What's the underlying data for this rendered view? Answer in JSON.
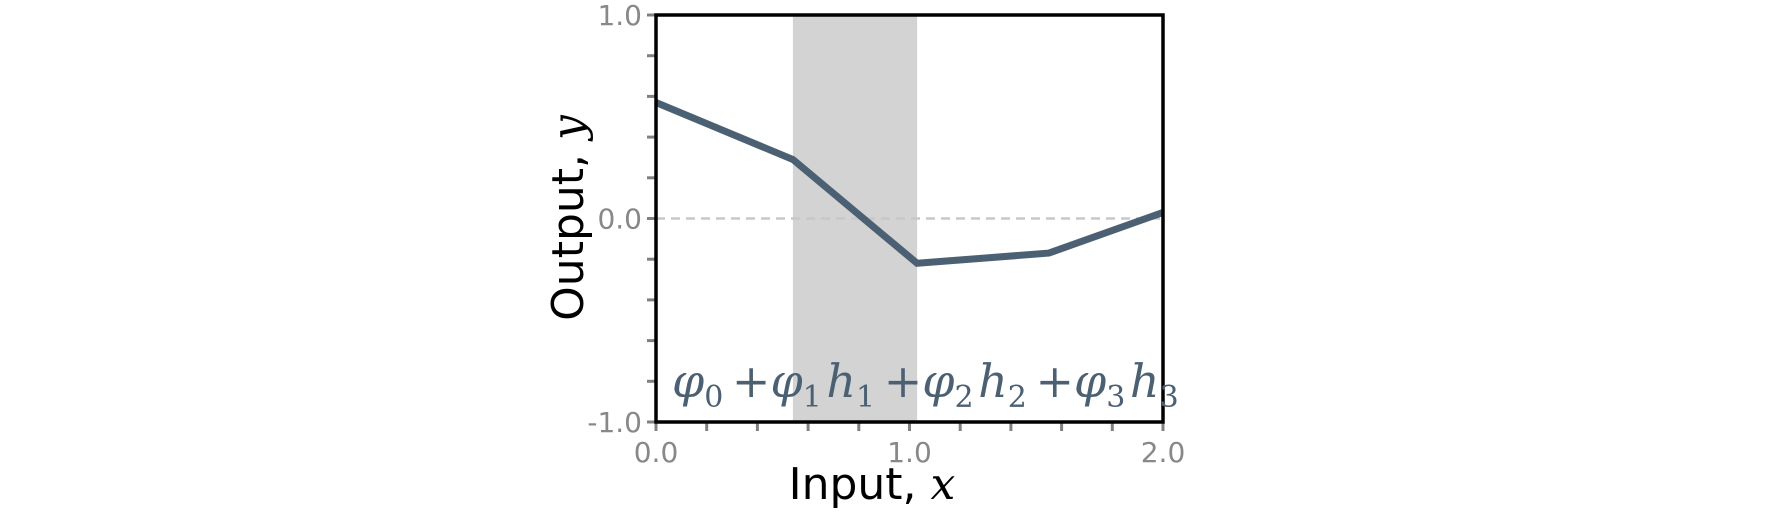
{
  "chart_data": {
    "type": "line",
    "x": [
      0.0,
      0.54,
      1.03,
      1.55,
      2.0
    ],
    "y": [
      0.57,
      0.29,
      -0.22,
      -0.17,
      0.03
    ],
    "xlim": [
      0.0,
      2.0
    ],
    "ylim": [
      -1.0,
      1.0
    ],
    "x_tick_labels": [
      "0.0",
      "1.0",
      "2.0"
    ],
    "x_tick_values": [
      0.0,
      1.0,
      2.0
    ],
    "y_tick_labels": [
      "1.0",
      "0.0",
      "-1.0"
    ],
    "y_tick_values": [
      1.0,
      0.0,
      -1.0
    ],
    "xlabel_text": "Input, ",
    "xlabel_math": "x",
    "ylabel_text": "Output, ",
    "ylabel_math": "y",
    "shaded_region": [
      0.54,
      1.03
    ],
    "reference_line_y": 0.0,
    "annotation": {
      "parts": [
        {
          "sym": "φ",
          "sub": "0"
        },
        {
          "op": "+"
        },
        {
          "sym": "φ",
          "sub": "1"
        },
        {
          "sym": "h",
          "sub": "1"
        },
        {
          "op": "+"
        },
        {
          "sym": "φ",
          "sub": "2"
        },
        {
          "sym": "h",
          "sub": "2"
        },
        {
          "op": "+"
        },
        {
          "sym": "φ",
          "sub": "3"
        },
        {
          "sym": "h",
          "sub": "3"
        }
      ]
    },
    "colors": {
      "line": "#4c6074",
      "shade": "#d3d3d3",
      "frame": "#000000",
      "ticks": "#808080",
      "zero_line": "#c8c8c8"
    }
  }
}
